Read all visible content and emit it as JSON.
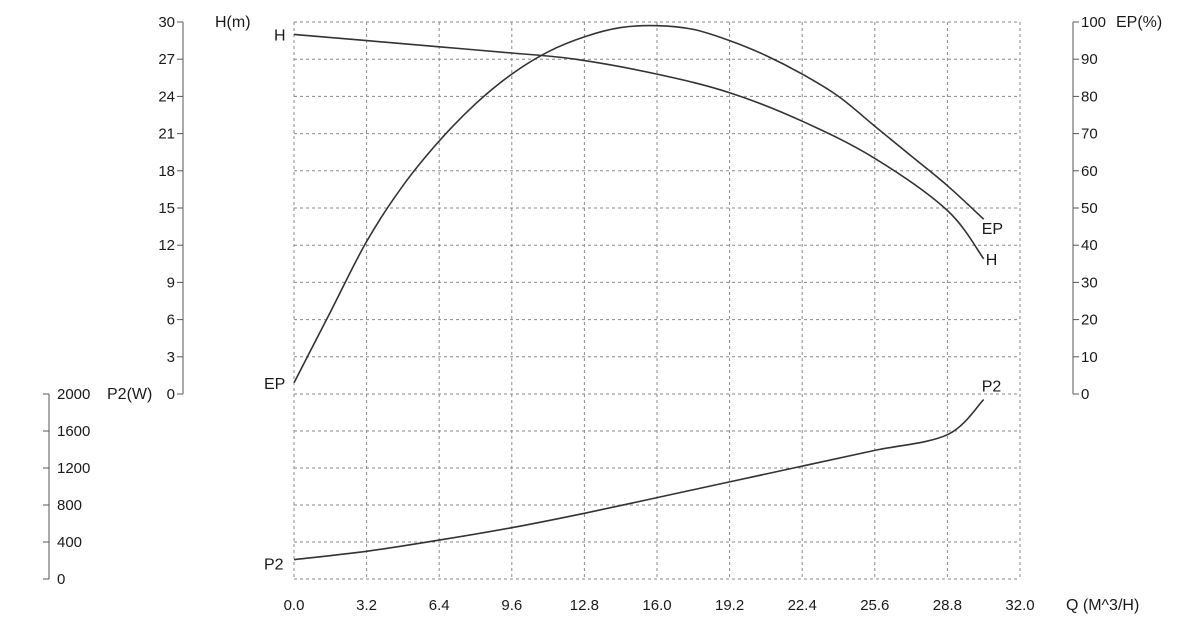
{
  "chart_data": {
    "type": "line",
    "x_axis": {
      "label": "Q (M^3/H)",
      "ticks": [
        "0.0",
        "3.2",
        "6.4",
        "9.6",
        "12.8",
        "16.0",
        "19.2",
        "22.4",
        "25.6",
        "28.8",
        "32.0"
      ],
      "range": [
        0,
        32
      ]
    },
    "head_axis": {
      "title": "H(m)",
      "ticks": [
        "30",
        "27",
        "24",
        "21",
        "18",
        "15",
        "12",
        "9",
        "6",
        "3",
        "0"
      ],
      "range": [
        0,
        30
      ]
    },
    "efficiency_axis": {
      "title": "EP(%)",
      "ticks": [
        "100",
        "90",
        "80",
        "70",
        "60",
        "50",
        "40",
        "30",
        "20",
        "10",
        "0"
      ],
      "range": [
        0,
        100
      ]
    },
    "power_axis": {
      "title": "P2(W)",
      "ticks": [
        "2000",
        "1600",
        "1200",
        "800",
        "400",
        "0"
      ],
      "range": [
        0,
        2000
      ]
    },
    "grid": true,
    "series": [
      {
        "name": "H",
        "axis": "head",
        "start_label": "H",
        "end_label": "H",
        "x": [
          0,
          3.2,
          6.4,
          9.6,
          12.4,
          16.0,
          19.2,
          22.4,
          25.6,
          28.8,
          30.4
        ],
        "y": [
          29.0,
          28.5,
          28.0,
          27.5,
          27.0,
          25.8,
          24.3,
          22.0,
          19.0,
          14.8,
          10.9
        ]
      },
      {
        "name": "EP",
        "axis": "efficiency",
        "start_label": "EP",
        "end_label": "EP",
        "x": [
          0,
          1.6,
          3.2,
          4.8,
          6.4,
          8.0,
          9.6,
          11.2,
          12.8,
          14.4,
          16.0,
          17.6,
          19.2,
          20.8,
          22.4,
          24.0,
          25.6,
          27.2,
          28.8,
          30.4
        ],
        "y": [
          3,
          22,
          41,
          56,
          68,
          78,
          86,
          92,
          96,
          98.5,
          99,
          98,
          95,
          91,
          86,
          80,
          72,
          64,
          56,
          47
        ]
      },
      {
        "name": "P2",
        "axis": "power",
        "start_label": "P2",
        "end_label": "P2",
        "x": [
          0,
          3.2,
          6.4,
          9.6,
          12.8,
          16.0,
          19.2,
          22.4,
          25.6,
          28.8,
          30.4
        ],
        "y": [
          210,
          300,
          420,
          555,
          710,
          880,
          1050,
          1220,
          1390,
          1560,
          1940
        ]
      }
    ]
  }
}
